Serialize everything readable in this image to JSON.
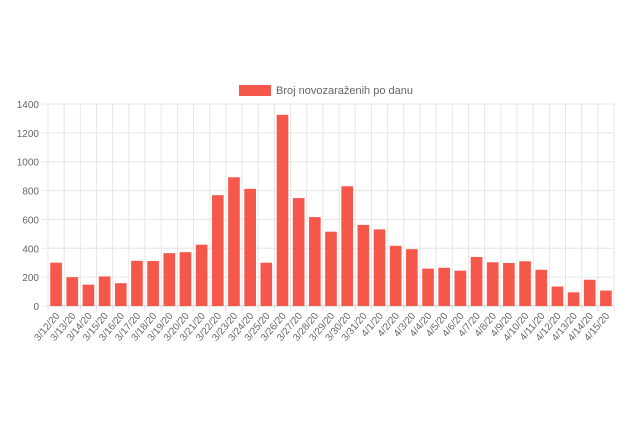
{
  "chart_data": {
    "type": "bar",
    "title": "",
    "xlabel": "",
    "ylabel": "",
    "legend": {
      "position": "top",
      "label": "Broj novozaraženih po danu"
    },
    "grid": true,
    "ylim": [
      0,
      1400
    ],
    "yticks": [
      0,
      200,
      400,
      600,
      800,
      1000,
      1200,
      1400
    ],
    "color": "#f5574b",
    "categories": [
      "3/12/20",
      "3/13/20",
      "3/14/20",
      "3/15/20",
      "3/16/20",
      "3/17/20",
      "3/18/20",
      "3/19/20",
      "3/20/20",
      "3/21/20",
      "3/22/20",
      "3/23/20",
      "3/24/20",
      "3/25/20",
      "3/26/20",
      "3/27/20",
      "3/28/20",
      "3/29/20",
      "3/30/20",
      "3/31/20",
      "4/1/20",
      "4/2/20",
      "4/3/20",
      "4/4/20",
      "4/5/20",
      "4/6/20",
      "4/7/20",
      "4/8/20",
      "4/9/20",
      "4/10/20",
      "4/11/20",
      "4/12/20",
      "4/13/20",
      "4/14/20",
      "4/15/20"
    ],
    "series": [
      {
        "name": "Broj novozaraženih po danu",
        "values": [
          300,
          200,
          148,
          205,
          158,
          313,
          312,
          366,
          373,
          425,
          768,
          892,
          812,
          300,
          1325,
          748,
          616,
          515,
          830,
          562,
          531,
          417,
          394,
          259,
          265,
          245,
          340,
          303,
          298,
          310,
          251,
          135,
          95,
          182,
          107
        ]
      }
    ]
  }
}
